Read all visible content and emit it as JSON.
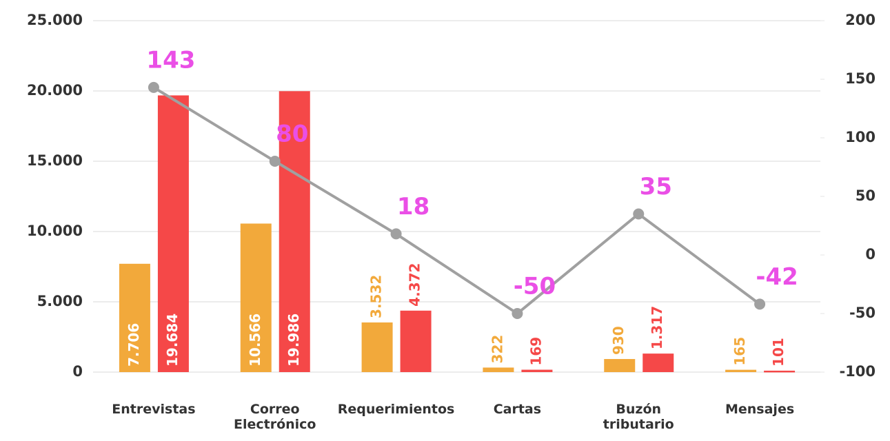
{
  "chart_data": {
    "type": "bar-line",
    "categories": [
      "Entrevistas",
      "Correo\nElectrónico",
      "Requerimientos",
      "Cartas",
      "Buzón\ntributario",
      "Mensajes"
    ],
    "series": [
      {
        "type": "bar",
        "color": "#f2a93b",
        "values": [
          7706,
          10566,
          3532,
          322,
          930,
          165
        ],
        "value_labels": [
          "7.706",
          "10.566",
          "3.532",
          "322",
          "930",
          "165"
        ]
      },
      {
        "type": "bar",
        "color": "#f54848",
        "values": [
          19684,
          19986,
          4372,
          169,
          1317,
          101
        ],
        "value_labels": [
          "19.684",
          "19.986",
          "4.372",
          "169",
          "1.317",
          "101"
        ]
      },
      {
        "type": "line",
        "axis": "y2",
        "color": "#a0a0a0",
        "label_color": "#ea4fe6",
        "values": [
          143,
          80,
          18,
          -50,
          35,
          -42
        ]
      }
    ],
    "ylim": [
      0,
      25000
    ],
    "yticks": [
      0,
      {
        "value": 5000,
        "label": "5.000"
      },
      {
        "value": 10000,
        "label": "10.000"
      },
      {
        "value": 15000,
        "label": "15.000"
      },
      {
        "value": 20000,
        "label": "20.000"
      },
      {
        "value": 25000,
        "label": "25.000"
      }
    ],
    "y2lim": [
      -100,
      200
    ],
    "y2ticks": [
      -100,
      -50,
      0,
      50,
      100,
      150,
      200
    ],
    "grid": true
  }
}
